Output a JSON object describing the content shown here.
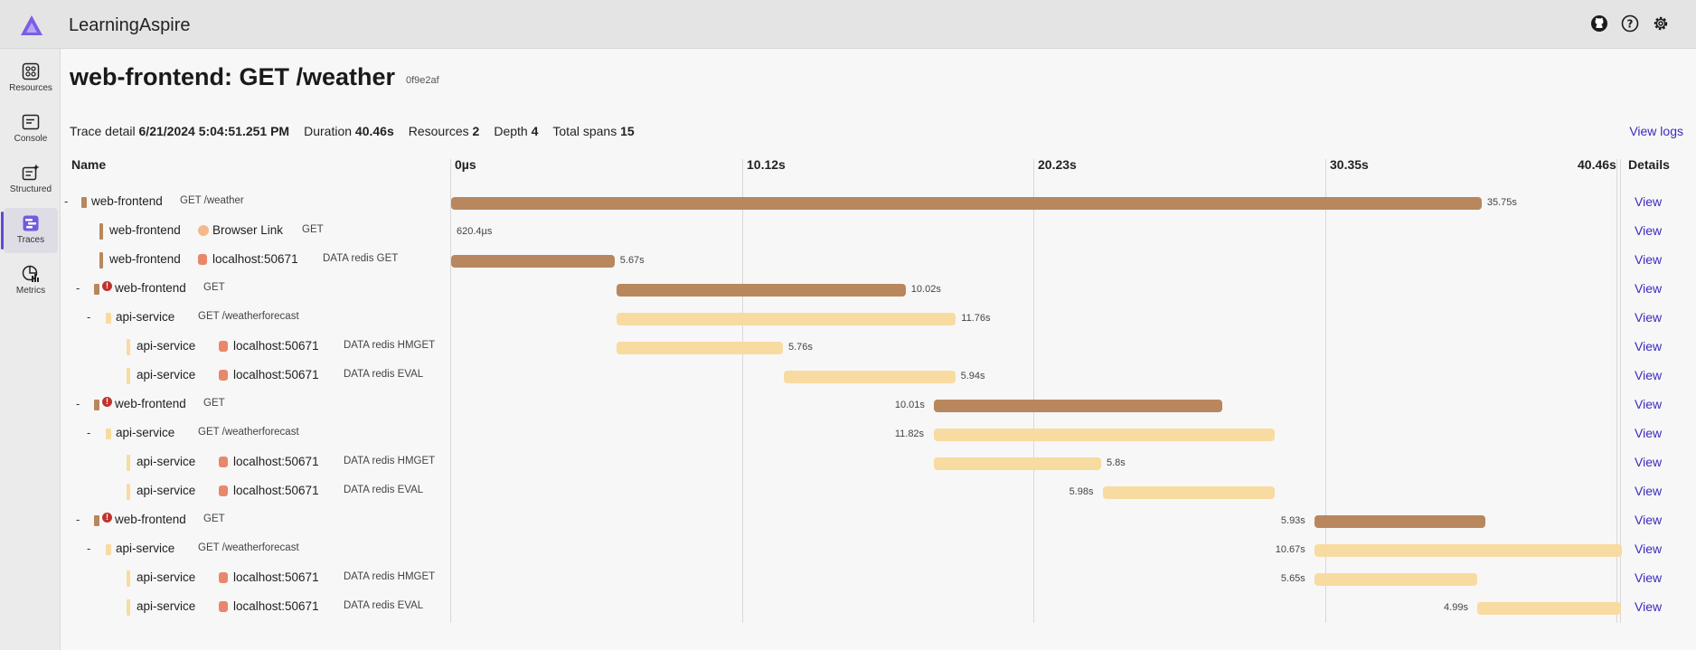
{
  "app": {
    "title": "LearningAspire"
  },
  "header": {
    "icons": [
      "github-icon",
      "help-icon",
      "settings-icon"
    ]
  },
  "sidebar": {
    "items": [
      {
        "label": "Resources",
        "icon": "resources-icon"
      },
      {
        "label": "Console",
        "icon": "console-icon"
      },
      {
        "label": "Structured",
        "icon": "structured-icon"
      },
      {
        "label": "Traces",
        "icon": "traces-icon",
        "active": true
      },
      {
        "label": "Metrics",
        "icon": "metrics-icon"
      }
    ]
  },
  "page": {
    "title": "web-frontend: GET /weather",
    "trace_id": "0f9e2af",
    "summary": {
      "trace_detail_label": "Trace detail",
      "trace_detail_value": "6/21/2024 5:04:51.251 PM",
      "duration_label": "Duration",
      "duration_value": "40.46s",
      "resources_label": "Resources",
      "resources_value": "2",
      "depth_label": "Depth",
      "depth_value": "4",
      "total_spans_label": "Total spans",
      "total_spans_value": "15"
    },
    "view_logs": "View logs"
  },
  "grid": {
    "name_header": "Name",
    "details_header": "Details",
    "ticks": [
      "0µs",
      "10.12s",
      "20.23s",
      "30.35s",
      "40.46s"
    ],
    "total_seconds": 40.46,
    "colors": {
      "web": "#b8875e",
      "api": "#f8dba0",
      "err": "#c0342b",
      "peer": "#e8876a"
    },
    "rows": [
      {
        "depth": 0,
        "toggle": "-",
        "service": "web-frontend",
        "kind": "web",
        "op": "GET /weather",
        "start": 0,
        "dur": 35.75,
        "dur_label": "35.75s",
        "label_side": "right",
        "view": "View"
      },
      {
        "depth": 1,
        "service": "web-frontend",
        "kind": "web",
        "peer": "Browser Link",
        "peer_kind": "browser",
        "op": "GET",
        "start": 0,
        "dur": 0.0006204,
        "dur_label": "620.4µs",
        "label_side": "inside",
        "view": "View"
      },
      {
        "depth": 1,
        "service": "web-frontend",
        "kind": "web",
        "peer": "localhost:50671",
        "peer_kind": "db",
        "op": "DATA redis GET",
        "start": 0,
        "dur": 5.67,
        "dur_label": "5.67s",
        "label_side": "right",
        "view": "View"
      },
      {
        "depth": 1,
        "toggle": "-",
        "error": true,
        "service": "web-frontend",
        "kind": "web",
        "op": "GET",
        "start": 5.75,
        "dur": 10.02,
        "dur_label": "10.02s",
        "label_side": "right",
        "view": "View"
      },
      {
        "depth": 2,
        "toggle": "-",
        "service": "api-service",
        "kind": "api",
        "op": "GET /weatherforecast",
        "start": 5.75,
        "dur": 11.76,
        "dur_label": "11.76s",
        "label_side": "right",
        "view": "View"
      },
      {
        "depth": 3,
        "service": "api-service",
        "kind": "api",
        "peer": "localhost:50671",
        "peer_kind": "db",
        "op": "DATA redis HMGET",
        "start": 5.75,
        "dur": 5.76,
        "dur_label": "5.76s",
        "label_side": "right",
        "view": "View"
      },
      {
        "depth": 3,
        "service": "api-service",
        "kind": "api",
        "peer": "localhost:50671",
        "peer_kind": "db",
        "op": "DATA redis EVAL",
        "start": 11.55,
        "dur": 5.94,
        "dur_label": "5.94s",
        "label_side": "right",
        "view": "View"
      },
      {
        "depth": 1,
        "toggle": "-",
        "error": true,
        "service": "web-frontend",
        "kind": "web",
        "op": "GET",
        "start": 16.75,
        "dur": 10.01,
        "dur_label": "10.01s",
        "label_side": "left",
        "view": "View"
      },
      {
        "depth": 2,
        "toggle": "-",
        "service": "api-service",
        "kind": "api",
        "op": "GET /weatherforecast",
        "start": 16.75,
        "dur": 11.82,
        "dur_label": "11.82s",
        "label_side": "left",
        "view": "View"
      },
      {
        "depth": 3,
        "service": "api-service",
        "kind": "api",
        "peer": "localhost:50671",
        "peer_kind": "db",
        "op": "DATA redis HMGET",
        "start": 16.75,
        "dur": 5.8,
        "dur_label": "5.8s",
        "label_side": "right",
        "view": "View"
      },
      {
        "depth": 3,
        "service": "api-service",
        "kind": "api",
        "peer": "localhost:50671",
        "peer_kind": "db",
        "op": "DATA redis EVAL",
        "start": 22.6,
        "dur": 5.98,
        "dur_label": "5.98s",
        "label_side": "left",
        "view": "View"
      },
      {
        "depth": 1,
        "toggle": "-",
        "error": true,
        "service": "web-frontend",
        "kind": "web",
        "op": "GET",
        "start": 29.95,
        "dur": 5.93,
        "dur_label": "5.93s",
        "label_side": "left",
        "view": "View"
      },
      {
        "depth": 2,
        "toggle": "-",
        "service": "api-service",
        "kind": "api",
        "op": "GET /weatherforecast",
        "start": 29.95,
        "dur": 10.67,
        "dur_label": "10.67s",
        "label_side": "left",
        "view": "View"
      },
      {
        "depth": 3,
        "service": "api-service",
        "kind": "api",
        "peer": "localhost:50671",
        "peer_kind": "db",
        "op": "DATA redis HMGET",
        "start": 29.95,
        "dur": 5.65,
        "dur_label": "5.65s",
        "label_side": "left",
        "view": "View"
      },
      {
        "depth": 3,
        "service": "api-service",
        "kind": "api",
        "peer": "localhost:50671",
        "peer_kind": "db",
        "op": "DATA redis EVAL",
        "start": 35.6,
        "dur": 4.99,
        "dur_label": "4.99s",
        "label_side": "left",
        "view": "View"
      }
    ]
  }
}
